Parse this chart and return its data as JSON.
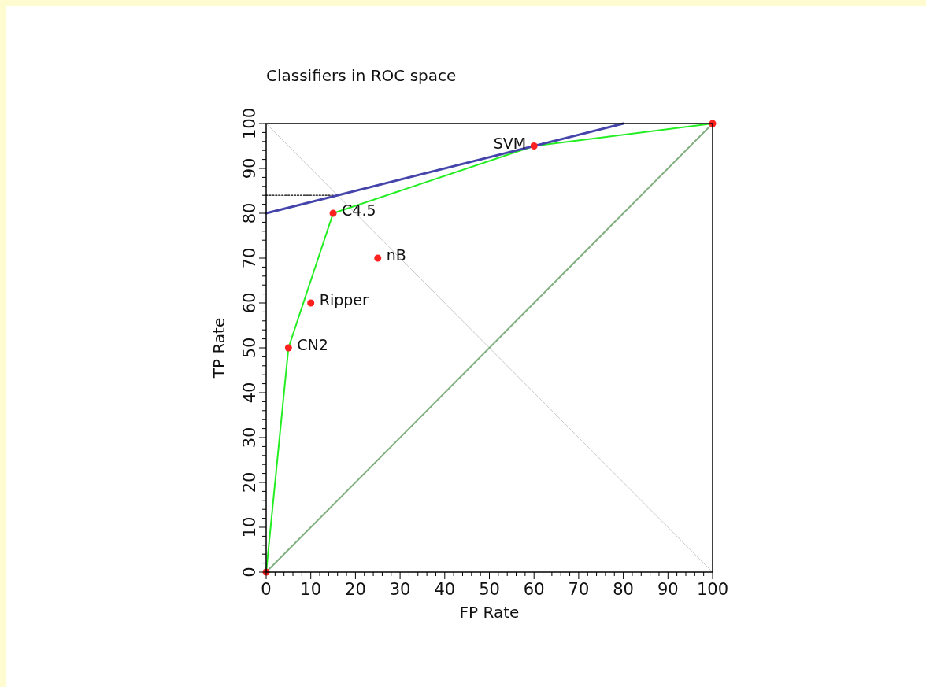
{
  "chart_data": {
    "type": "scatter",
    "title": "Classifiers in ROC space",
    "xlabel": "FP Rate",
    "ylabel": "TP Rate",
    "xlim": [
      0,
      100
    ],
    "ylim": [
      0,
      100
    ],
    "xticks": [
      0,
      {
        "value": 2,
        "label": null
      },
      {
        "value": 4,
        "label": null
      },
      {
        "value": 6,
        "label": null
      },
      {
        "value": 8,
        "label": null
      },
      10,
      {
        "value": 12,
        "label": null
      },
      {
        "value": 14,
        "label": null
      },
      {
        "value": 16,
        "label": null
      },
      {
        "value": 18,
        "label": null
      },
      20,
      {
        "value": 22,
        "label": null
      },
      {
        "value": 24,
        "label": null
      },
      {
        "value": 26,
        "label": null
      },
      {
        "value": 28,
        "label": null
      },
      30,
      {
        "value": 32,
        "label": null
      },
      {
        "value": 34,
        "label": null
      },
      {
        "value": 36,
        "label": null
      },
      {
        "value": 38,
        "label": null
      },
      40,
      {
        "value": 42,
        "label": null
      },
      {
        "value": 44,
        "label": null
      },
      {
        "value": 46,
        "label": null
      },
      {
        "value": 48,
        "label": null
      },
      50,
      {
        "value": 52,
        "label": null
      },
      {
        "value": 54,
        "label": null
      },
      {
        "value": 56,
        "label": null
      },
      {
        "value": 58,
        "label": null
      },
      60,
      {
        "value": 62,
        "label": null
      },
      {
        "value": 64,
        "label": null
      },
      {
        "value": 66,
        "label": null
      },
      {
        "value": 68,
        "label": null
      },
      70,
      {
        "value": 72,
        "label": null
      },
      {
        "value": 74,
        "label": null
      },
      {
        "value": 76,
        "label": null
      },
      {
        "value": 78,
        "label": null
      },
      80,
      {
        "value": 82,
        "label": null
      },
      {
        "value": 84,
        "label": null
      },
      {
        "value": 86,
        "label": null
      },
      {
        "value": 88,
        "label": null
      },
      90,
      {
        "value": 92,
        "label": null
      },
      {
        "value": 94,
        "label": null
      },
      {
        "value": 96,
        "label": null
      },
      {
        "value": 98,
        "label": null
      },
      100
    ],
    "yticks": [
      0,
      {
        "value": 2,
        "label": null
      },
      {
        "value": 4,
        "label": null
      },
      {
        "value": 6,
        "label": null
      },
      {
        "value": 8,
        "label": null
      },
      10,
      {
        "value": 12,
        "label": null
      },
      {
        "value": 14,
        "label": null
      },
      {
        "value": 16,
        "label": null
      },
      {
        "value": 18,
        "label": null
      },
      20,
      {
        "value": 22,
        "label": null
      },
      {
        "value": 24,
        "label": null
      },
      {
        "value": 26,
        "label": null
      },
      {
        "value": 28,
        "label": null
      },
      30,
      {
        "value": 32,
        "label": null
      },
      {
        "value": 34,
        "label": null
      },
      {
        "value": 36,
        "label": null
      },
      {
        "value": 38,
        "label": null
      },
      40,
      {
        "value": 42,
        "label": null
      },
      {
        "value": 44,
        "label": null
      },
      {
        "value": 46,
        "label": null
      },
      {
        "value": 48,
        "label": null
      },
      50,
      {
        "value": 52,
        "label": null
      },
      {
        "value": 54,
        "label": null
      },
      {
        "value": 56,
        "label": null
      },
      {
        "value": 58,
        "label": null
      },
      60,
      {
        "value": 62,
        "label": null
      },
      {
        "value": 64,
        "label": null
      },
      {
        "value": 66,
        "label": null
      },
      {
        "value": 68,
        "label": null
      },
      70,
      {
        "value": 72,
        "label": null
      },
      {
        "value": 74,
        "label": null
      },
      {
        "value": 76,
        "label": null
      },
      {
        "value": 78,
        "label": null
      },
      80,
      {
        "value": 82,
        "label": null
      },
      {
        "value": 84,
        "label": null
      },
      {
        "value": 86,
        "label": null
      },
      {
        "value": 88,
        "label": null
      },
      90,
      {
        "value": 92,
        "label": null
      },
      {
        "value": 94,
        "label": null
      },
      {
        "value": 96,
        "label": null
      },
      {
        "value": 98,
        "label": null
      },
      100
    ],
    "grid": false,
    "series": [
      {
        "type": "line",
        "color": "#c8c8c8",
        "x": [
          0,
          100
        ],
        "values": [
          100,
          0
        ],
        "line_style": "solid",
        "marker": "none"
      },
      {
        "type": "line",
        "color": "#80b080",
        "x": [
          0,
          100
        ],
        "values": [
          0,
          100
        ],
        "line_style": "solid",
        "marker": "none"
      },
      {
        "type": "line",
        "color": "#000000",
        "x": [
          0,
          15
        ],
        "values": [
          84,
          84
        ],
        "line_style": "dotted",
        "marker": "none"
      },
      {
        "type": "line",
        "color": "#22ee22",
        "x": [
          0,
          5,
          15,
          60,
          100
        ],
        "values": [
          0,
          50,
          80,
          95,
          100
        ],
        "line_style": "solid",
        "marker": "none"
      },
      {
        "type": "line",
        "color": "#4444aa",
        "x": [
          0,
          80
        ],
        "values": [
          80,
          100
        ],
        "line_style": "solid",
        "marker": "none"
      },
      {
        "color": "#ff2020",
        "x": [
          0,
          5,
          10,
          15,
          25,
          60,
          100
        ],
        "values": [
          0,
          50,
          60,
          80,
          70,
          95,
          100
        ],
        "marker": "circle"
      }
    ],
    "annotations": [
      {
        "text": "CN2",
        "x": 5,
        "y": 50
      },
      {
        "text": "Ripper",
        "x": 10,
        "y": 60
      },
      {
        "text": "C4.5",
        "x": 15,
        "y": 80
      },
      {
        "text": "nB",
        "x": 25,
        "y": 70
      },
      {
        "text": "SVM",
        "x": 60,
        "y": 95
      }
    ]
  }
}
